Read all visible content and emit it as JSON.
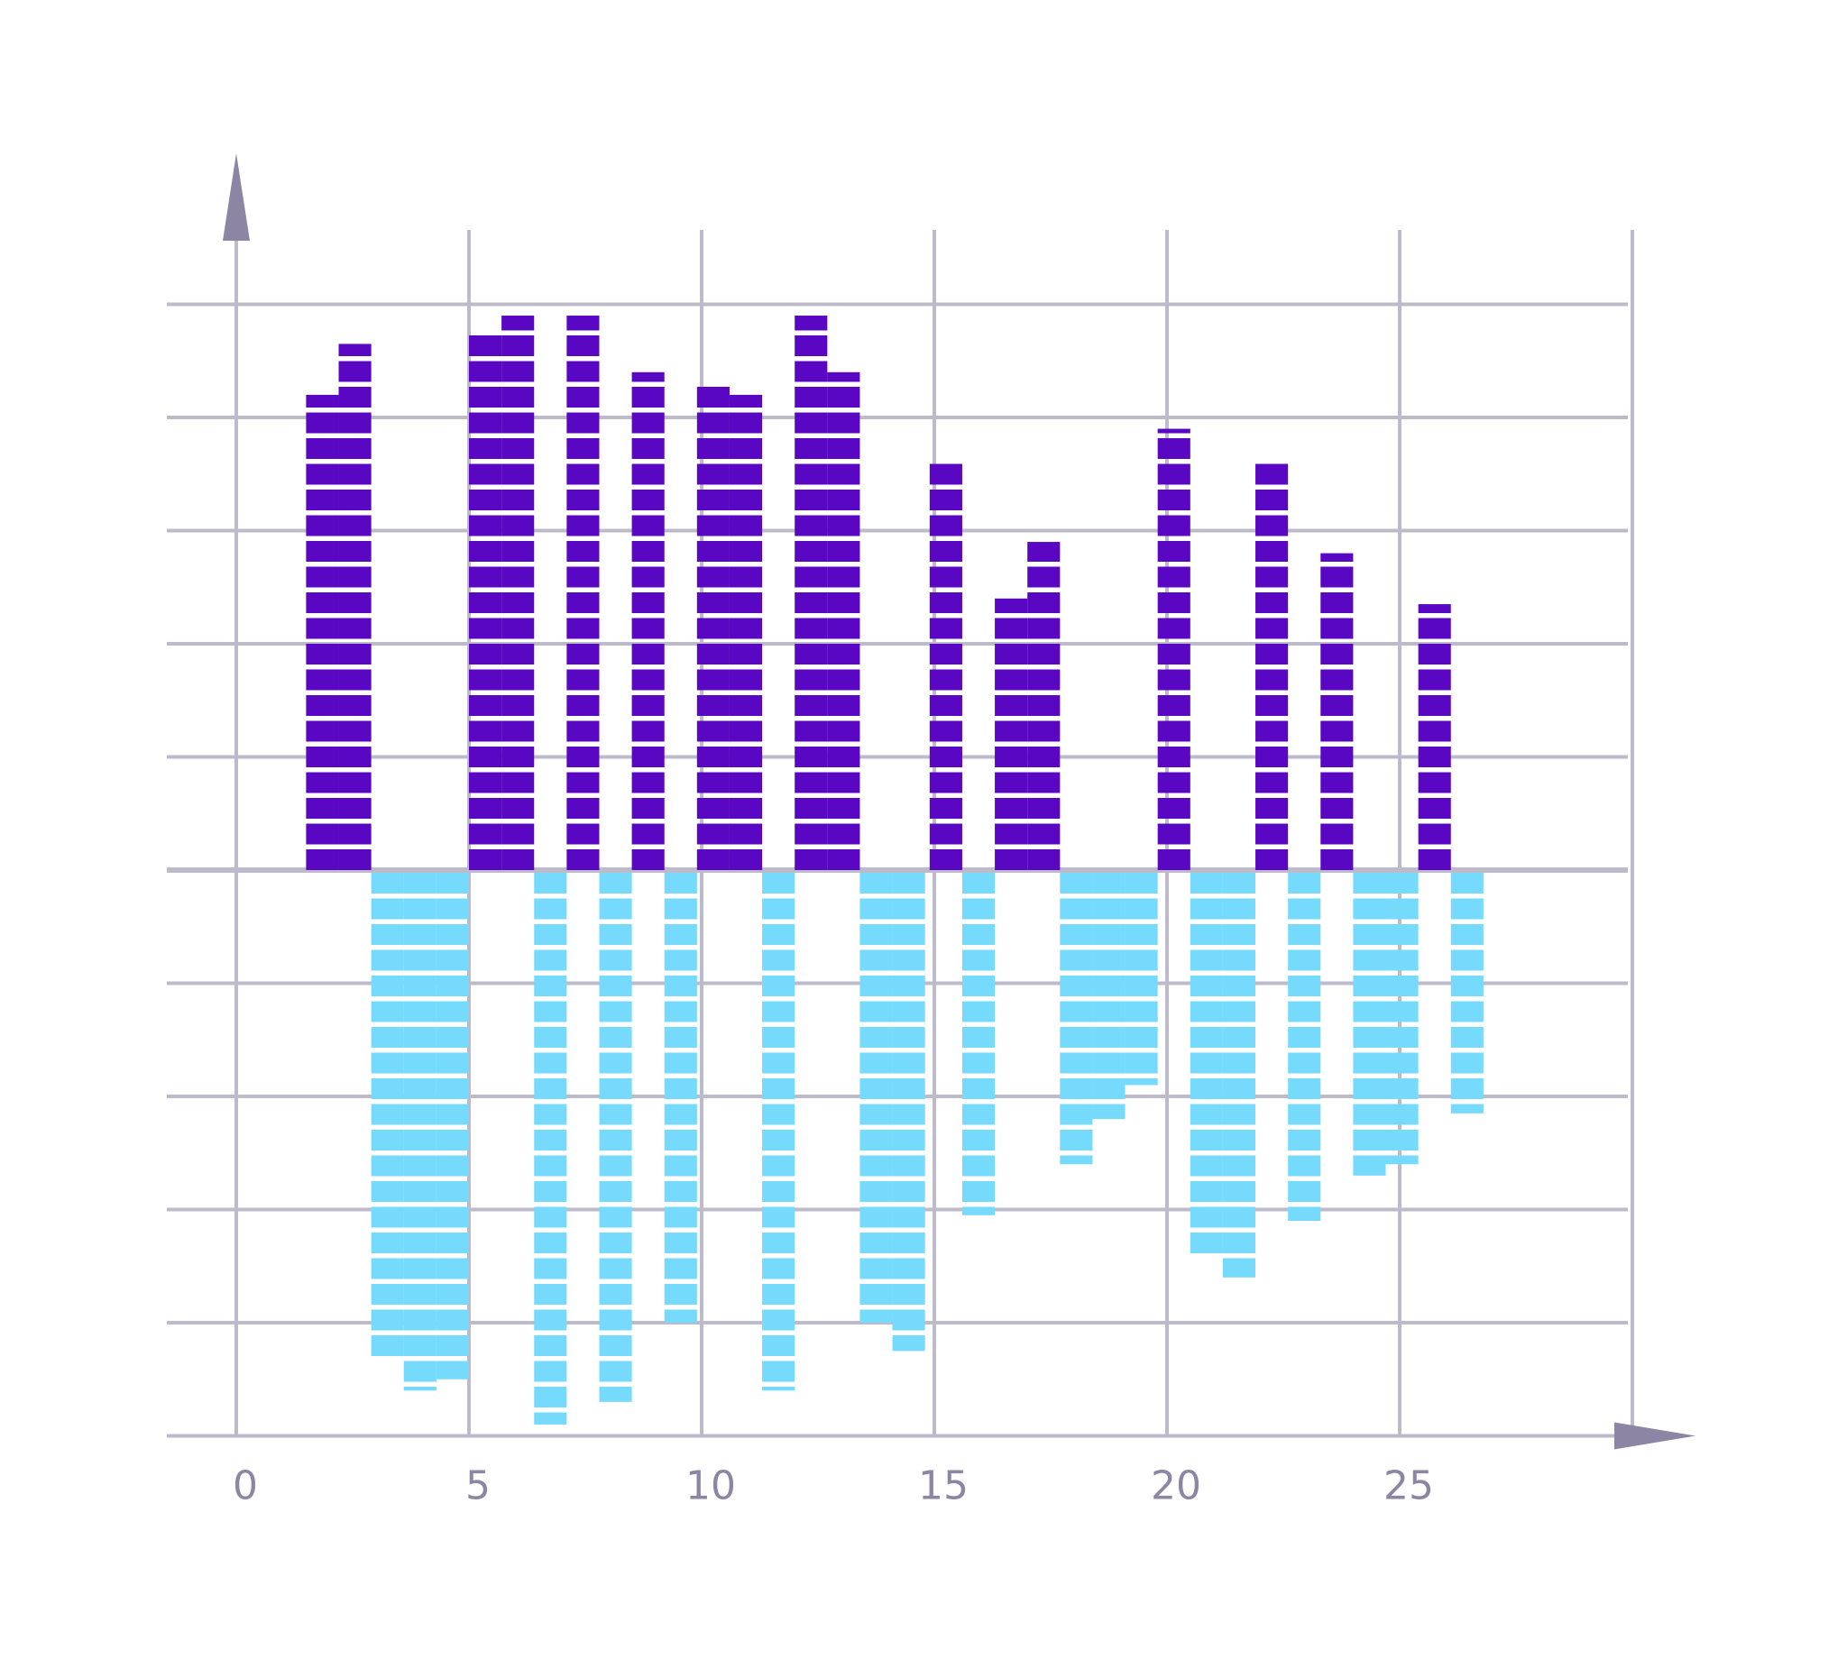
{
  "chart_data": {
    "type": "bar",
    "x_tick_labels": [
      "0",
      "5",
      "10",
      "15",
      "20",
      "25"
    ],
    "xlim": [
      0,
      30
    ],
    "ylim": [
      -5,
      5
    ],
    "y_tick_values": [
      -5,
      -4,
      -3,
      -2,
      -1,
      0,
      1,
      2,
      3,
      4,
      5
    ],
    "grid": true,
    "series": [
      {
        "color": "#5a07c3",
        "stripe_color": "#ffffff",
        "bars": [
          {
            "x0": 1.5,
            "x1": 2.2,
            "value": 4.2
          },
          {
            "x0": 2.2,
            "x1": 2.9,
            "value": 4.65
          },
          {
            "x0": 5.0,
            "x1": 5.7,
            "value": 4.75
          },
          {
            "x0": 5.7,
            "x1": 6.4,
            "value": 4.9
          },
          {
            "x0": 7.1,
            "x1": 7.8,
            "value": 4.9
          },
          {
            "x0": 8.5,
            "x1": 9.2,
            "value": 4.4
          },
          {
            "x0": 9.9,
            "x1": 10.6,
            "value": 4.3
          },
          {
            "x0": 10.6,
            "x1": 11.3,
            "value": 4.2
          },
          {
            "x0": 12.0,
            "x1": 12.7,
            "value": 4.9
          },
          {
            "x0": 12.7,
            "x1": 13.4,
            "value": 4.4
          },
          {
            "x0": 14.9,
            "x1": 15.6,
            "value": 3.6
          },
          {
            "x0": 16.3,
            "x1": 17.0,
            "value": 2.4
          },
          {
            "x0": 17.0,
            "x1": 17.7,
            "value": 2.9
          },
          {
            "x0": 19.8,
            "x1": 20.5,
            "value": 3.9
          },
          {
            "x0": 21.9,
            "x1": 22.6,
            "value": 3.6
          },
          {
            "x0": 23.3,
            "x1": 24.0,
            "value": 2.8
          },
          {
            "x0": 25.4,
            "x1": 26.1,
            "value": 2.35
          }
        ]
      },
      {
        "color": "#76dafc",
        "stripe_color": "#ffffff",
        "bars": [
          {
            "x0": 2.9,
            "x1": 3.6,
            "value": -4.3
          },
          {
            "x0": 3.6,
            "x1": 4.3,
            "value": -4.6
          },
          {
            "x0": 4.3,
            "x1": 5.0,
            "value": -4.5
          },
          {
            "x0": 6.4,
            "x1": 7.1,
            "value": -4.9
          },
          {
            "x0": 7.8,
            "x1": 8.5,
            "value": -4.7
          },
          {
            "x0": 9.2,
            "x1": 9.9,
            "value": -4.0
          },
          {
            "x0": 11.3,
            "x1": 12.0,
            "value": -4.6
          },
          {
            "x0": 13.4,
            "x1": 14.1,
            "value": -4.0
          },
          {
            "x0": 14.1,
            "x1": 14.8,
            "value": -4.25
          },
          {
            "x0": 15.6,
            "x1": 16.3,
            "value": -3.05
          },
          {
            "x0": 17.7,
            "x1": 18.4,
            "value": -2.6
          },
          {
            "x0": 18.4,
            "x1": 19.1,
            "value": -2.2
          },
          {
            "x0": 19.1,
            "x1": 19.8,
            "value": -1.9
          },
          {
            "x0": 20.5,
            "x1": 21.2,
            "value": -3.4
          },
          {
            "x0": 21.2,
            "x1": 21.9,
            "value": -3.6
          },
          {
            "x0": 22.6,
            "x1": 23.3,
            "value": -3.1
          },
          {
            "x0": 24.0,
            "x1": 24.7,
            "value": -2.7
          },
          {
            "x0": 24.7,
            "x1": 25.4,
            "value": -2.6
          },
          {
            "x0": 26.1,
            "x1": 26.8,
            "value": -2.15
          }
        ]
      }
    ]
  },
  "style": {
    "grid_color": "#bdbaca",
    "axis_arrow_color": "#8c85a3",
    "tick_label_color": "#8c85a3"
  }
}
